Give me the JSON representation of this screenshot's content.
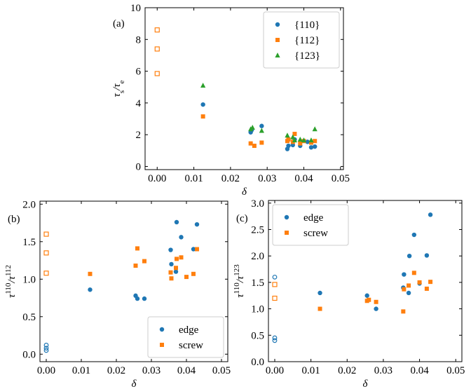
{
  "chart_data": [
    {
      "type": "scatter",
      "panel": "(a)",
      "xlabel": "δ",
      "ylabel": [
        {
          "text": "τ"
        },
        {
          "text": "s",
          "shift": "sub"
        },
        {
          "text": "/τ"
        },
        {
          "text": "e",
          "shift": "sub"
        }
      ],
      "xlim": [
        -0.0033,
        0.0508
      ],
      "ylim": [
        -0.2,
        10
      ],
      "xticks": [
        {
          "value": 0,
          "label": "0.00"
        },
        {
          "value": 0.01,
          "label": "0.01"
        },
        {
          "value": 0.02,
          "label": "0.02"
        },
        {
          "value": 0.03,
          "label": "0.03"
        },
        {
          "value": 0.04,
          "label": "0.04"
        },
        {
          "value": 0.05,
          "label": "0.05"
        }
      ],
      "yticks": [
        0,
        2,
        4,
        6,
        8,
        10
      ],
      "legend": "upper right",
      "series": [
        {
          "name": "{110}",
          "color": "#1f77b4",
          "marker": "circle",
          "x": [
            0.0125,
            0.0255,
            0.0258,
            0.0285,
            0.0355,
            0.0358,
            0.037,
            0.0375,
            0.039,
            0.041,
            0.042,
            0.043
          ],
          "values": [
            3.9,
            2.15,
            2.3,
            2.55,
            1.1,
            1.3,
            1.35,
            1.7,
            1.3,
            1.55,
            1.2,
            1.25
          ],
          "open": [
            false,
            false,
            false,
            false,
            false,
            false,
            false,
            false,
            false,
            false,
            false,
            false
          ]
        },
        {
          "name": "{112}",
          "color": "#ff7f0e",
          "marker": "square",
          "x": [
            0,
            0,
            0,
            0.0125,
            0.0255,
            0.0265,
            0.0285,
            0.0355,
            0.0358,
            0.037,
            0.0375,
            0.039,
            0.04,
            0.042,
            0.043
          ],
          "values": [
            8.6,
            7.4,
            5.85,
            3.15,
            1.45,
            1.3,
            1.5,
            1.6,
            1.7,
            1.55,
            2.05,
            1.45,
            1.6,
            1.5,
            1.6
          ],
          "open": [
            true,
            true,
            true,
            false,
            false,
            false,
            false,
            false,
            false,
            false,
            false,
            false,
            false,
            false,
            false
          ]
        },
        {
          "name": "{123}",
          "color": "#2ca02c",
          "marker": "triangle",
          "x": [
            0.0125,
            0.0255,
            0.026,
            0.0285,
            0.0355,
            0.037,
            0.0375,
            0.039,
            0.04,
            0.042,
            0.043
          ],
          "values": [
            5.1,
            2.35,
            2.45,
            2.25,
            1.95,
            1.85,
            1.65,
            1.7,
            1.65,
            1.65,
            2.35
          ],
          "open": [
            false,
            false,
            false,
            false,
            false,
            false,
            false,
            false,
            false,
            false,
            false
          ]
        }
      ]
    },
    {
      "type": "scatter",
      "panel": "(b)",
      "xlabel": "δ",
      "ylabel": [
        {
          "text": "τ"
        },
        {
          "text": "110",
          "shift": "super"
        },
        {
          "text": "/τ"
        },
        {
          "text": "112",
          "shift": "super"
        }
      ],
      "xlim": [
        -0.0018,
        0.0518
      ],
      "ylim": [
        -0.1,
        2.04
      ],
      "xticks": [
        {
          "value": 0,
          "label": "0.00"
        },
        {
          "value": 0.01,
          "label": "0.01"
        },
        {
          "value": 0.02,
          "label": "0.02"
        },
        {
          "value": 0.03,
          "label": "0.03"
        },
        {
          "value": 0.04,
          "label": "0.04"
        },
        {
          "value": 0.05,
          "label": "0.05"
        }
      ],
      "yticks": [
        {
          "value": 0,
          "label": "0.0"
        },
        {
          "value": 0.5,
          "label": "0.5"
        },
        {
          "value": 1,
          "label": "1.0"
        },
        {
          "value": 1.5,
          "label": "1.5"
        },
        {
          "value": 2,
          "label": "2.0"
        }
      ],
      "legend": "lower right",
      "series": [
        {
          "name": "edge",
          "color": "#1f77b4",
          "marker": "circle",
          "x": [
            0,
            0,
            0,
            0.0125,
            0.0255,
            0.026,
            0.028,
            0.0355,
            0.0357,
            0.037,
            0.0372,
            0.0385,
            0.042,
            0.043
          ],
          "values": [
            0.12,
            0.08,
            0.05,
            0.86,
            0.78,
            0.74,
            0.74,
            1.39,
            1.2,
            1.1,
            1.76,
            1.56,
            1.4,
            1.73
          ],
          "open": [
            true,
            true,
            true,
            false,
            false,
            false,
            false,
            false,
            false,
            false,
            false,
            false,
            false,
            false
          ]
        },
        {
          "name": "screw",
          "color": "#ff7f0e",
          "marker": "square",
          "x": [
            0,
            0,
            0,
            0.0125,
            0.0255,
            0.026,
            0.028,
            0.0355,
            0.0357,
            0.037,
            0.0372,
            0.0385,
            0.04,
            0.042,
            0.043
          ],
          "values": [
            1.6,
            1.35,
            1.08,
            1.07,
            1.18,
            1.41,
            1.24,
            1.09,
            1.01,
            1.15,
            1.27,
            1.29,
            1.03,
            1.07,
            1.4
          ],
          "open": [
            true,
            true,
            true,
            false,
            false,
            false,
            false,
            false,
            false,
            false,
            false,
            false,
            false,
            false,
            false
          ]
        }
      ]
    },
    {
      "type": "scatter",
      "panel": "(c)",
      "xlabel": "δ",
      "ylabel": [
        {
          "text": "τ"
        },
        {
          "text": "110",
          "shift": "super"
        },
        {
          "text": "/τ"
        },
        {
          "text": "123",
          "shift": "super"
        }
      ],
      "xlim": [
        -0.00174,
        0.0517
      ],
      "ylim": [
        0,
        3.05
      ],
      "xticks": [
        {
          "value": 0,
          "label": "0.00"
        },
        {
          "value": 0.01,
          "label": "0.01"
        },
        {
          "value": 0.02,
          "label": "0.02"
        },
        {
          "value": 0.03,
          "label": "0.03"
        },
        {
          "value": 0.04,
          "label": "0.04"
        },
        {
          "value": 0.05,
          "label": "0.05"
        }
      ],
      "yticks": [
        {
          "value": 0,
          "label": "0.0"
        },
        {
          "value": 0.5,
          "label": "0.5"
        },
        {
          "value": 1,
          "label": "1.0"
        },
        {
          "value": 1.5,
          "label": "1.5"
        },
        {
          "value": 2,
          "label": "2.0"
        },
        {
          "value": 2.5,
          "label": "2.5"
        },
        {
          "value": 3,
          "label": "3.0"
        }
      ],
      "legend": "upper left",
      "series": [
        {
          "name": "edge",
          "color": "#1f77b4",
          "marker": "circle",
          "x": [
            0,
            0,
            0,
            0.0125,
            0.0255,
            0.028,
            0.0355,
            0.0357,
            0.037,
            0.0372,
            0.0385,
            0.04,
            0.042,
            0.043
          ],
          "values": [
            1.6,
            0.45,
            0.4,
            1.3,
            1.25,
            1.0,
            1.4,
            1.65,
            1.3,
            2.0,
            2.4,
            1.48,
            2.01,
            2.78
          ],
          "open": [
            true,
            true,
            true,
            false,
            false,
            false,
            false,
            false,
            false,
            false,
            false,
            false,
            false,
            false
          ]
        },
        {
          "name": "screw",
          "color": "#ff7f0e",
          "marker": "square",
          "x": [
            0,
            0,
            0.0125,
            0.0255,
            0.026,
            0.028,
            0.0355,
            0.0357,
            0.037,
            0.0385,
            0.04,
            0.042,
            0.043
          ],
          "values": [
            1.46,
            1.2,
            1.0,
            1.15,
            1.17,
            1.13,
            0.95,
            1.37,
            1.44,
            1.68,
            1.5,
            1.38,
            1.51
          ],
          "open": [
            true,
            true,
            false,
            false,
            false,
            false,
            false,
            false,
            false,
            false,
            false,
            false,
            false
          ]
        }
      ]
    }
  ]
}
